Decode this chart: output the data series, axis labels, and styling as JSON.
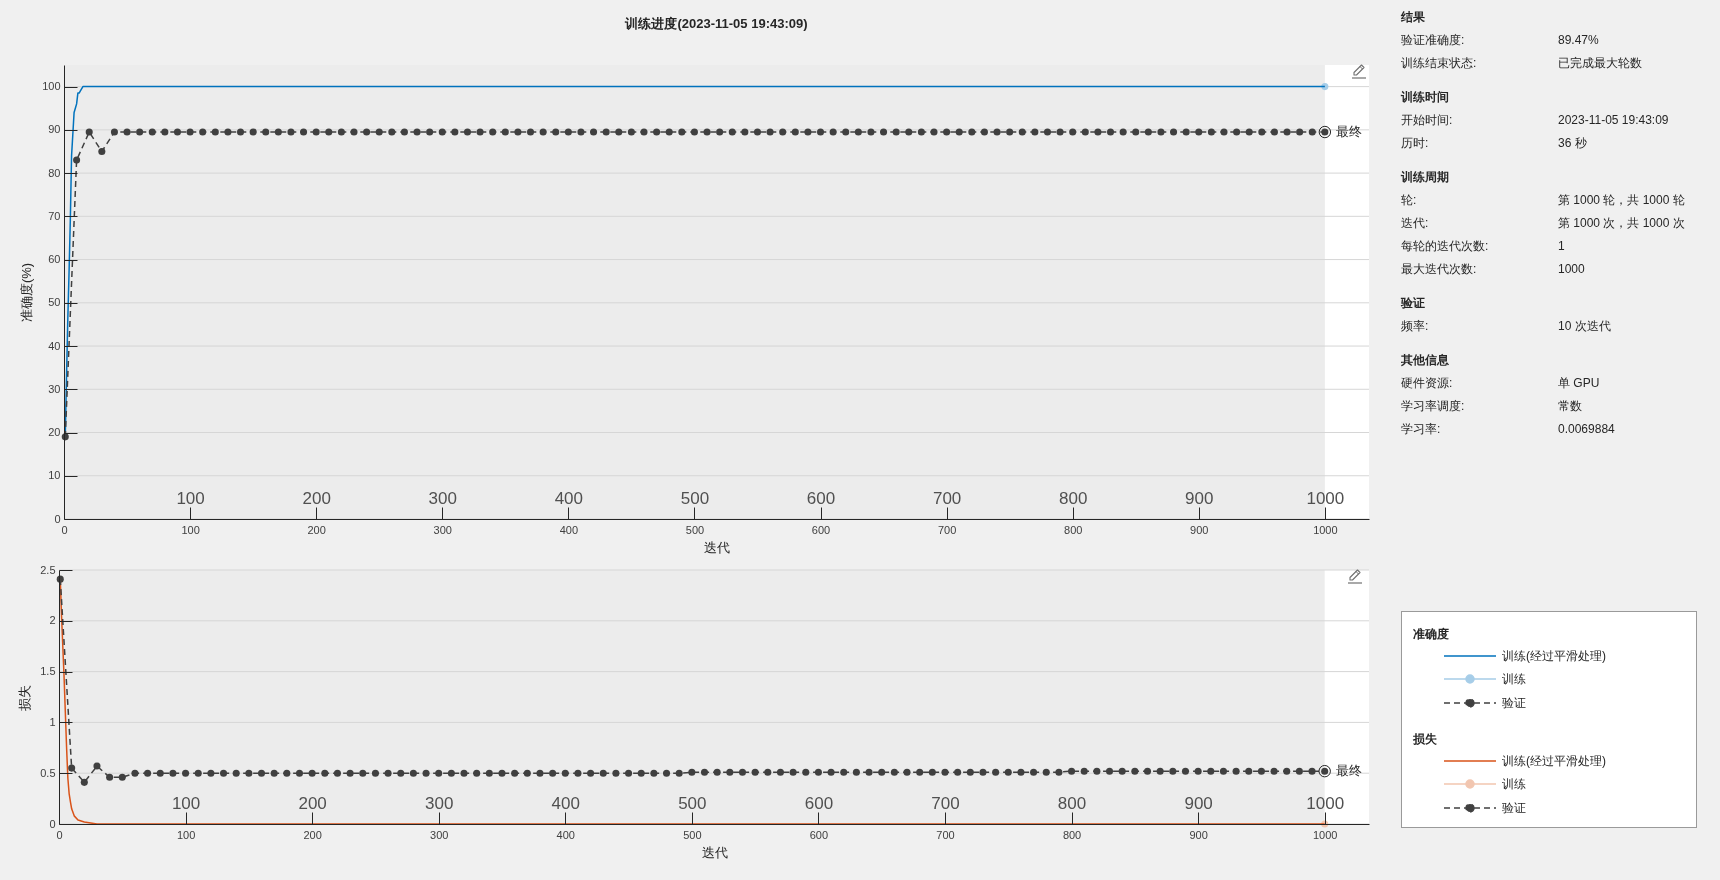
{
  "chart_data": [
    {
      "type": "line",
      "title": "训练进度(2023-11-05 19:43:09)",
      "xlabel": "迭代",
      "ylabel": "准确度(%)",
      "legend_title": "准确度",
      "legend": "bottom right",
      "grid": "y",
      "xlim": [
        0,
        1035
      ],
      "xticks": [
        0,
        100,
        200,
        300,
        400,
        500,
        600,
        700,
        800,
        900,
        1000
      ],
      "x2lim": [
        0,
        1035
      ],
      "x2ticks": [
        100,
        200,
        300,
        400,
        500,
        600,
        700,
        800,
        900,
        1000
      ],
      "ylim": [
        0,
        105
      ],
      "yticks": [
        0,
        10,
        20,
        30,
        40,
        50,
        60,
        70,
        80,
        90,
        100
      ],
      "bands": [
        {
          "axis": "x",
          "from": 0,
          "to": 1000,
          "color": "#ececec"
        }
      ],
      "annotations": [
        {
          "text": "最终",
          "x": 1000,
          "y": 89.5
        }
      ],
      "series": [
        {
          "name": "训练(经过平滑处理)",
          "color": "#0072bd",
          "x": [
            1,
            2,
            3,
            4,
            5,
            6,
            7,
            8,
            9,
            10,
            11,
            12,
            13,
            15,
            1000
          ],
          "values": [
            19,
            33,
            46,
            57,
            69,
            84,
            89,
            94,
            95,
            96,
            98.5,
            98.5,
            99,
            100,
            100
          ]
        },
        {
          "name": "训练",
          "color": "#a6cde8",
          "marker": "circle",
          "x": [
            1000
          ],
          "values": [
            100
          ]
        },
        {
          "name": "验证",
          "color": "#404040",
          "marker": "circle",
          "line_style": "dashed",
          "x": [
            1,
            10,
            20,
            30,
            40,
            50,
            60,
            70,
            80,
            90,
            100,
            110,
            120,
            130,
            140,
            150,
            160,
            170,
            180,
            190,
            200,
            210,
            220,
            230,
            240,
            250,
            260,
            270,
            280,
            290,
            300,
            310,
            320,
            330,
            340,
            350,
            360,
            370,
            380,
            390,
            400,
            410,
            420,
            430,
            440,
            450,
            460,
            470,
            480,
            490,
            500,
            510,
            520,
            530,
            540,
            550,
            560,
            570,
            580,
            590,
            600,
            610,
            620,
            630,
            640,
            650,
            660,
            670,
            680,
            690,
            700,
            710,
            720,
            730,
            740,
            750,
            760,
            770,
            780,
            790,
            800,
            810,
            820,
            830,
            840,
            850,
            860,
            870,
            880,
            890,
            900,
            910,
            920,
            930,
            940,
            950,
            960,
            970,
            980,
            990,
            1000
          ],
          "values": [
            19,
            83,
            89.5,
            85,
            89.5,
            89.5,
            89.5,
            89.5,
            89.5,
            89.5,
            89.5,
            89.5,
            89.5,
            89.5,
            89.5,
            89.5,
            89.5,
            89.5,
            89.5,
            89.5,
            89.5,
            89.5,
            89.5,
            89.5,
            89.5,
            89.5,
            89.5,
            89.5,
            89.5,
            89.5,
            89.5,
            89.5,
            89.5,
            89.5,
            89.5,
            89.5,
            89.5,
            89.5,
            89.5,
            89.5,
            89.5,
            89.5,
            89.5,
            89.5,
            89.5,
            89.5,
            89.5,
            89.5,
            89.5,
            89.5,
            89.5,
            89.5,
            89.5,
            89.5,
            89.5,
            89.5,
            89.5,
            89.5,
            89.5,
            89.5,
            89.5,
            89.5,
            89.5,
            89.5,
            89.5,
            89.5,
            89.5,
            89.5,
            89.5,
            89.5,
            89.5,
            89.5,
            89.5,
            89.5,
            89.5,
            89.5,
            89.5,
            89.5,
            89.5,
            89.5,
            89.5,
            89.5,
            89.5,
            89.5,
            89.5,
            89.5,
            89.5,
            89.5,
            89.5,
            89.5,
            89.5,
            89.5,
            89.5,
            89.5,
            89.5,
            89.5,
            89.5,
            89.5,
            89.5,
            89.5,
            89.5
          ]
        }
      ]
    },
    {
      "type": "line",
      "xlabel": "迭代",
      "ylabel": "损失",
      "legend_title": "损失",
      "legend": "right",
      "grid": "y",
      "xlim": [
        0,
        1035
      ],
      "xticks": [
        0,
        100,
        200,
        300,
        400,
        500,
        600,
        700,
        800,
        900,
        1000
      ],
      "x2lim": [
        0,
        1035
      ],
      "x2ticks": [
        100,
        200,
        300,
        400,
        500,
        600,
        700,
        800,
        900,
        1000
      ],
      "ylim": [
        0,
        2.5
      ],
      "yticks": [
        0,
        0.5,
        1,
        1.5,
        2,
        2.5
      ],
      "bands": [
        {
          "axis": "x",
          "from": 0,
          "to": 1000,
          "color": "#ececec"
        }
      ],
      "annotations": [
        {
          "text": "最终",
          "x": 1000,
          "y": 0.52
        }
      ],
      "series": [
        {
          "name": "训练(经过平滑处理)",
          "color": "#d95319",
          "x": [
            1,
            2,
            3,
            4,
            5,
            6,
            7,
            8,
            9,
            10,
            12,
            15,
            20,
            25,
            30,
            1000
          ],
          "values": [
            2.41,
            2.05,
            1.75,
            1.45,
            1.1,
            0.75,
            0.45,
            0.3,
            0.22,
            0.15,
            0.08,
            0.04,
            0.02,
            0.01,
            0,
            0
          ]
        },
        {
          "name": "训练",
          "color": "#f2c6b0",
          "marker": "circle",
          "x": [
            1000
          ],
          "values": [
            0
          ]
        },
        {
          "name": "验证",
          "color": "#404040",
          "marker": "circle",
          "line_style": "dashed",
          "x": [
            1,
            10,
            20,
            30,
            40,
            50,
            60,
            70,
            80,
            90,
            100,
            110,
            120,
            130,
            140,
            150,
            160,
            170,
            180,
            190,
            200,
            210,
            220,
            230,
            240,
            250,
            260,
            270,
            280,
            290,
            300,
            310,
            320,
            330,
            340,
            350,
            360,
            370,
            380,
            390,
            400,
            410,
            420,
            430,
            440,
            450,
            460,
            470,
            480,
            490,
            500,
            510,
            520,
            530,
            540,
            550,
            560,
            570,
            580,
            590,
            600,
            610,
            620,
            630,
            640,
            650,
            660,
            670,
            680,
            690,
            700,
            710,
            720,
            730,
            740,
            750,
            760,
            770,
            780,
            790,
            800,
            810,
            820,
            830,
            840,
            850,
            860,
            870,
            880,
            890,
            900,
            910,
            920,
            930,
            940,
            950,
            960,
            970,
            980,
            990,
            1000
          ],
          "values": [
            2.41,
            0.55,
            0.41,
            0.57,
            0.46,
            0.46,
            0.5,
            0.5,
            0.5,
            0.5,
            0.5,
            0.5,
            0.5,
            0.5,
            0.5,
            0.5,
            0.5,
            0.5,
            0.5,
            0.5,
            0.5,
            0.5,
            0.5,
            0.5,
            0.5,
            0.5,
            0.5,
            0.5,
            0.5,
            0.5,
            0.5,
            0.5,
            0.5,
            0.5,
            0.5,
            0.5,
            0.5,
            0.5,
            0.5,
            0.5,
            0.5,
            0.5,
            0.5,
            0.5,
            0.5,
            0.5,
            0.5,
            0.5,
            0.5,
            0.5,
            0.51,
            0.51,
            0.51,
            0.51,
            0.51,
            0.51,
            0.51,
            0.51,
            0.51,
            0.51,
            0.51,
            0.51,
            0.51,
            0.51,
            0.51,
            0.51,
            0.51,
            0.51,
            0.51,
            0.51,
            0.51,
            0.51,
            0.51,
            0.51,
            0.51,
            0.51,
            0.51,
            0.51,
            0.51,
            0.51,
            0.52,
            0.52,
            0.52,
            0.52,
            0.52,
            0.52,
            0.52,
            0.52,
            0.52,
            0.52,
            0.52,
            0.52,
            0.52,
            0.52,
            0.52,
            0.52,
            0.52,
            0.52,
            0.52,
            0.52,
            0.52
          ]
        }
      ]
    },
    {
      "type": "other",
      "annotations": [
        "结果",
        "验证准确度:",
        "89.47%",
        "训练结束状态:",
        "已完成最大轮数",
        "训练时间",
        "开始时间:",
        "2023-11-05 19:43:09",
        "历时:",
        "36 秒",
        "训练周期",
        "轮:",
        "第 1000 轮，共 1000 轮",
        "迭代:",
        "第 1000 次，共 1000 次",
        "每轮的迭代次数:",
        "1",
        "最大迭代次数:",
        "1000",
        "验证",
        "频率:",
        "10 次迭代",
        "其他信息",
        "硬件资源:",
        "单 GPU",
        "学习率调度:",
        "常数",
        "学习率:",
        "0.0069884"
      ]
    }
  ]
}
